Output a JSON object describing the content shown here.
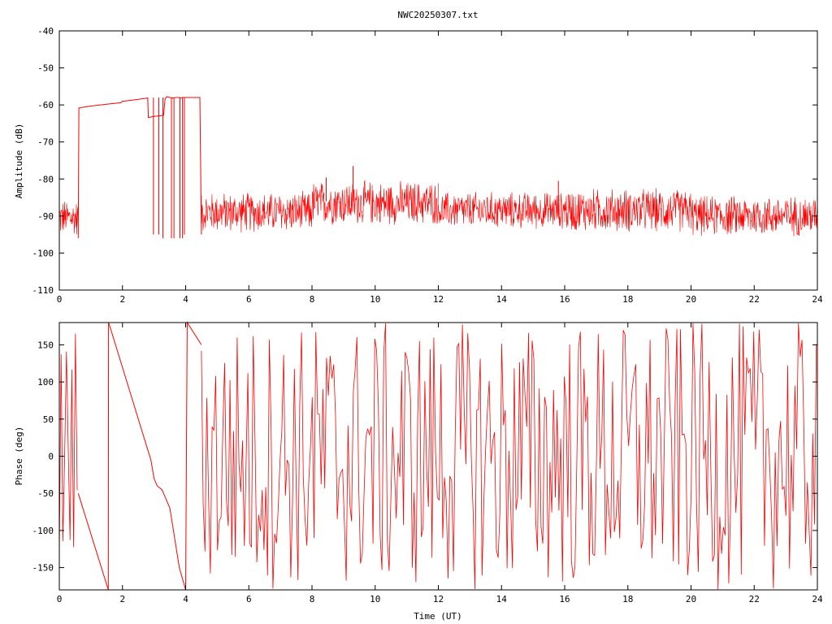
{
  "title": "NWC20250307.txt",
  "colors": {
    "series": "#ff0000",
    "axes": "#000000",
    "background": "#ffffff"
  },
  "chart_data": [
    {
      "type": "line",
      "title": "NWC20250307.txt",
      "xlabel": "",
      "ylabel": "Amplitude (dB)",
      "xlim": [
        0,
        24
      ],
      "ylim": [
        -110,
        -40
      ],
      "x_ticks": [
        0,
        2,
        4,
        6,
        8,
        10,
        12,
        14,
        16,
        18,
        20,
        22,
        24
      ],
      "y_ticks": [
        -110,
        -100,
        -90,
        -80,
        -70,
        -60,
        -50,
        -40
      ],
      "grid": false,
      "noise_regions": [
        {
          "x": [
            0.0,
            0.6
          ],
          "min": -96,
          "max": -85
        },
        {
          "x": [
            4.5,
            8.0
          ],
          "min": -95,
          "max": -83
        },
        {
          "x": [
            8.0,
            12.0
          ],
          "min": -93,
          "max": -80
        },
        {
          "x": [
            12.0,
            16.0
          ],
          "min": -94,
          "max": -83
        },
        {
          "x": [
            16.0,
            20.0
          ],
          "min": -95,
          "max": -82
        },
        {
          "x": [
            20.0,
            24.0
          ],
          "min": -96,
          "max": -84
        }
      ],
      "series": [
        {
          "x": [
            0.6,
            0.62,
            1.0,
            1.5,
            1.95,
            2.0,
            2.2,
            2.5,
            2.75,
            2.8,
            2.82,
            3.0,
            3.2,
            3.3,
            3.35,
            3.4,
            3.5,
            3.6,
            3.7,
            3.8,
            3.85,
            3.9,
            4.0,
            4.2,
            4.45,
            4.5
          ],
          "y": [
            -96,
            -60.8,
            -60.3,
            -59.8,
            -59.4,
            -59.0,
            -58.8,
            -58.5,
            -58.2,
            -58.1,
            -63.4,
            -63.1,
            -62.9,
            -62.8,
            -58.4,
            -57.8,
            -58.0,
            -58.1,
            -58.0,
            -58.0,
            -58.1,
            -58.0,
            -58.0,
            -58.0,
            -58.0,
            -95
          ]
        }
      ],
      "dropouts": [
        {
          "x": 2.98,
          "y": -95
        },
        {
          "x": 3.15,
          "y": -95
        },
        {
          "x": 3.28,
          "y": -96
        },
        {
          "x": 3.55,
          "y": -96
        },
        {
          "x": 3.63,
          "y": -96
        },
        {
          "x": 3.82,
          "y": -96
        },
        {
          "x": 3.9,
          "y": -96
        },
        {
          "x": 3.96,
          "y": -95
        }
      ],
      "spikes": [
        {
          "x": 8.45,
          "y": -79.6
        },
        {
          "x": 9.3,
          "y": -76.5
        },
        {
          "x": 15.8,
          "y": -80.5
        }
      ]
    },
    {
      "type": "line",
      "title": "",
      "xlabel": "Time (UT)",
      "ylabel": "Phase (deg)",
      "xlim": [
        0,
        24
      ],
      "ylim": [
        -180,
        180
      ],
      "x_ticks": [
        0,
        2,
        4,
        6,
        8,
        10,
        12,
        14,
        16,
        18,
        20,
        22,
        24
      ],
      "y_ticks": [
        -150,
        -100,
        -50,
        0,
        50,
        100,
        150
      ],
      "grid": false,
      "series": [
        {
          "x": [
            0.6,
            1.55,
            1.56,
            1.6,
            2.9,
            3.0,
            3.1,
            3.25,
            3.4,
            3.5,
            3.8,
            3.9,
            4.0,
            4.05,
            4.5
          ],
          "y": [
            -50,
            -180,
            180,
            175,
            -5,
            -30,
            -40,
            -45,
            -60,
            -70,
            -150,
            -165,
            -180,
            180,
            150
          ]
        }
      ],
      "noise_regions": [
        {
          "x": [
            0.0,
            0.6
          ],
          "min": -180,
          "max": 180
        },
        {
          "x": [
            4.5,
            24.0
          ],
          "min": -180,
          "max": 180
        }
      ]
    }
  ]
}
